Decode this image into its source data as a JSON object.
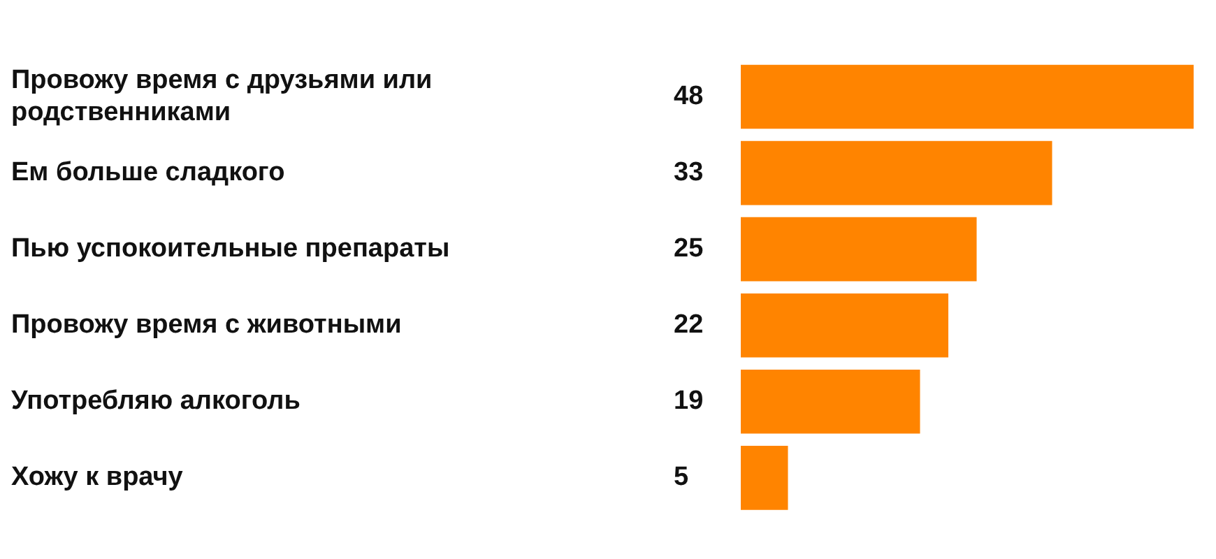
{
  "chart_data": {
    "type": "bar",
    "orientation": "horizontal",
    "categories": [
      "Провожу время с друзьями или родственниками",
      "Ем больше сладкого",
      "Пью успокоительные препараты",
      "Провожу время с животными",
      "Употребляю алкоголь",
      "Хожу к врачу"
    ],
    "values": [
      48,
      33,
      25,
      22,
      19,
      5
    ],
    "color": "#ff8400",
    "data_labels": true
  }
}
